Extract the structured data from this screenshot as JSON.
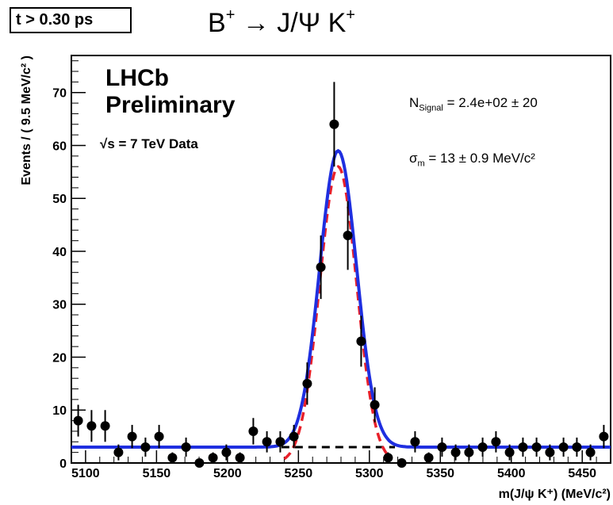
{
  "header": {
    "cut_label": "t > 0.30 ps",
    "title_main": "B",
    "title_sup1": "+",
    "title_arrow": " → J/Ψ K",
    "title_sup2": "+"
  },
  "annotations": {
    "experiment": "LHCb",
    "status": "Preliminary",
    "energy": "√s = 7 TeV Data",
    "nsignal_symbol": "N",
    "nsignal_sub": "Signal",
    "nsignal_value": " = 2.4e+02 ± 20",
    "sigma_symbol": "σ",
    "sigma_sub": "m",
    "sigma_value": " = 13 ± 0.9 MeV/c²"
  },
  "colors": {
    "total_fit": "#1f2fe0",
    "signal": "#e8202a",
    "background": "#000000",
    "points": "#000000"
  },
  "chart_data": {
    "type": "scatter",
    "xlabel": "m(J/ψ K⁺) (MeV/c²)",
    "ylabel": "Events / ( 9.5 MeV/c² )",
    "xlim": [
      5090,
      5470
    ],
    "ylim": [
      0,
      77
    ],
    "xticks": [
      5100,
      5150,
      5200,
      5250,
      5300,
      5350,
      5400,
      5450
    ],
    "yticks": [
      0,
      10,
      20,
      30,
      40,
      50,
      60,
      70
    ],
    "grid": false,
    "series": [
      {
        "type": "errorbar",
        "x": [
          5094.8,
          5104.2,
          5113.8,
          5123.2,
          5132.8,
          5142.2,
          5151.8,
          5161.2,
          5170.8,
          5180.2,
          5189.8,
          5199.2,
          5208.8,
          5218.2,
          5227.8,
          5237.2,
          5246.8,
          5256.2,
          5265.8,
          5275.2,
          5284.8,
          5294.2,
          5303.8,
          5313.2,
          5322.8,
          5332.2,
          5341.8,
          5351.2,
          5360.8,
          5370.2,
          5379.8,
          5389.2,
          5398.8,
          5408.2,
          5417.8,
          5427.2,
          5436.8,
          5446.2,
          5455.8,
          5465.2
        ],
        "y": [
          8,
          7,
          7,
          2,
          5,
          3,
          5,
          1,
          3,
          0,
          1,
          2,
          1,
          6,
          4,
          4,
          5,
          15,
          37,
          64,
          43,
          23,
          11,
          1,
          0,
          4,
          1,
          3,
          2,
          2,
          3,
          4,
          2,
          3,
          3,
          2,
          3,
          3,
          2,
          5
        ],
        "yerr": [
          3,
          3,
          3,
          1.5,
          2.2,
          1.8,
          2.2,
          1,
          1.8,
          0,
          1,
          1.5,
          1,
          2.5,
          2,
          2,
          2.2,
          4,
          6,
          8,
          6.5,
          4.8,
          3.3,
          1,
          0,
          2,
          1,
          1.8,
          1.5,
          1.5,
          1.8,
          2,
          1.5,
          1.8,
          1.8,
          1.5,
          1.8,
          1.8,
          1.5,
          2.2
        ]
      },
      {
        "type": "line",
        "curve": "gaussian",
        "mean": 5278,
        "sigma": 13,
        "baseline": 3,
        "peak": 56
      }
    ]
  }
}
